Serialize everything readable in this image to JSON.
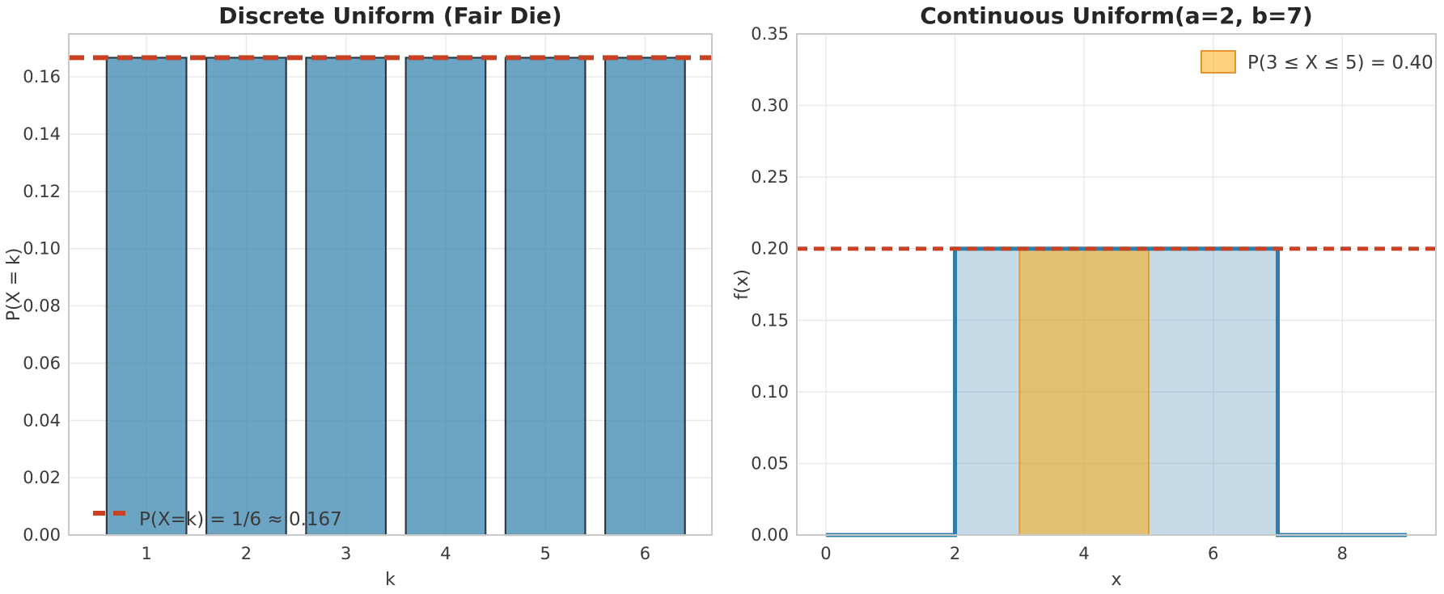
{
  "figure": {
    "background": "#ffffff",
    "grid_color": "#e9e9e9",
    "spine_color": "#c9c9c9",
    "tick_color": "#3a3a3a",
    "title_color": "#262626"
  },
  "chart_data": [
    {
      "type": "bar",
      "title": "Discrete Uniform (Fair Die)",
      "xlabel": "k",
      "ylabel": "P(X = k)",
      "categories": [
        "1",
        "2",
        "3",
        "4",
        "5",
        "6"
      ],
      "bar_x": [
        1,
        2,
        3,
        4,
        5,
        6
      ],
      "values": [
        0.1667,
        0.1667,
        0.1667,
        0.1667,
        0.1667,
        0.1667
      ],
      "bar_width": 0.8,
      "xlim": [
        0.22,
        6.67
      ],
      "ylim": [
        0,
        0.175
      ],
      "xticks": [
        {
          "v": 1,
          "label": "1"
        },
        {
          "v": 2,
          "label": "2"
        },
        {
          "v": 3,
          "label": "3"
        },
        {
          "v": 4,
          "label": "4"
        },
        {
          "v": 5,
          "label": "5"
        },
        {
          "v": 6,
          "label": "6"
        }
      ],
      "yticks": [
        {
          "v": 0.0,
          "label": "0.00"
        },
        {
          "v": 0.02,
          "label": "0.02"
        },
        {
          "v": 0.04,
          "label": "0.04"
        },
        {
          "v": 0.06,
          "label": "0.06"
        },
        {
          "v": 0.08,
          "label": "0.08"
        },
        {
          "v": 0.1,
          "label": "0.10"
        },
        {
          "v": 0.12,
          "label": "0.12"
        },
        {
          "v": 0.14,
          "label": "0.14"
        },
        {
          "v": 0.16,
          "label": "0.16"
        }
      ],
      "grid": true,
      "colors": {
        "bar_fill": "#2E7EAB",
        "bar_fill_opacity": 0.7,
        "bar_edge": "#222831",
        "ref_line": "#C84123"
      },
      "ref_line": {
        "y": 0.1667,
        "style": "dashed"
      },
      "legend": {
        "position": "lower-left",
        "entries": [
          {
            "label": "P(X=k) = 1/6 ≈ 0.167",
            "marker": "dashed-line",
            "color": "#C84123"
          }
        ]
      }
    },
    {
      "type": "area",
      "title": "Continuous Uniform(a=2, b=7)",
      "xlabel": "x",
      "ylabel": "f(x)",
      "a": 2,
      "b": 7,
      "pdf_height": 0.2,
      "line": {
        "x": [
          0,
          2,
          2,
          7,
          7,
          9
        ],
        "y": [
          0,
          0,
          0.2,
          0.2,
          0,
          0
        ],
        "color": "#2E7EAB"
      },
      "fills": [
        {
          "x0": 2,
          "x1": 7,
          "y": 0.2,
          "color": "#2E7EAB",
          "opacity": 0.28,
          "edge": "none",
          "name": "support-fill"
        },
        {
          "x0": 3,
          "x1": 5,
          "y": 0.2,
          "color": "#FFA500",
          "opacity": 0.5,
          "edge": "#E8952E",
          "name": "probability-fill"
        }
      ],
      "xlim": [
        -0.45,
        9.45
      ],
      "ylim": [
        0,
        0.35
      ],
      "xticks": [
        {
          "v": 0,
          "label": "0"
        },
        {
          "v": 2,
          "label": "2"
        },
        {
          "v": 4,
          "label": "4"
        },
        {
          "v": 6,
          "label": "6"
        },
        {
          "v": 8,
          "label": "8"
        }
      ],
      "yticks": [
        {
          "v": 0.0,
          "label": "0.00"
        },
        {
          "v": 0.05,
          "label": "0.05"
        },
        {
          "v": 0.1,
          "label": "0.10"
        },
        {
          "v": 0.15,
          "label": "0.15"
        },
        {
          "v": 0.2,
          "label": "0.20"
        },
        {
          "v": 0.25,
          "label": "0.25"
        },
        {
          "v": 0.3,
          "label": "0.30"
        },
        {
          "v": 0.35,
          "label": "0.35"
        }
      ],
      "grid": true,
      "colors": {
        "ref_line": "#C84123"
      },
      "ref_line": {
        "y": 0.2,
        "style": "dashed"
      },
      "legend": {
        "position": "upper-right",
        "entries": [
          {
            "label": "P(3 ≤ X ≤ 5) = 0.40",
            "marker": "patch",
            "fill": "#FFA500",
            "fill_opacity": 0.5,
            "edge": "#E8952E"
          }
        ]
      }
    }
  ]
}
